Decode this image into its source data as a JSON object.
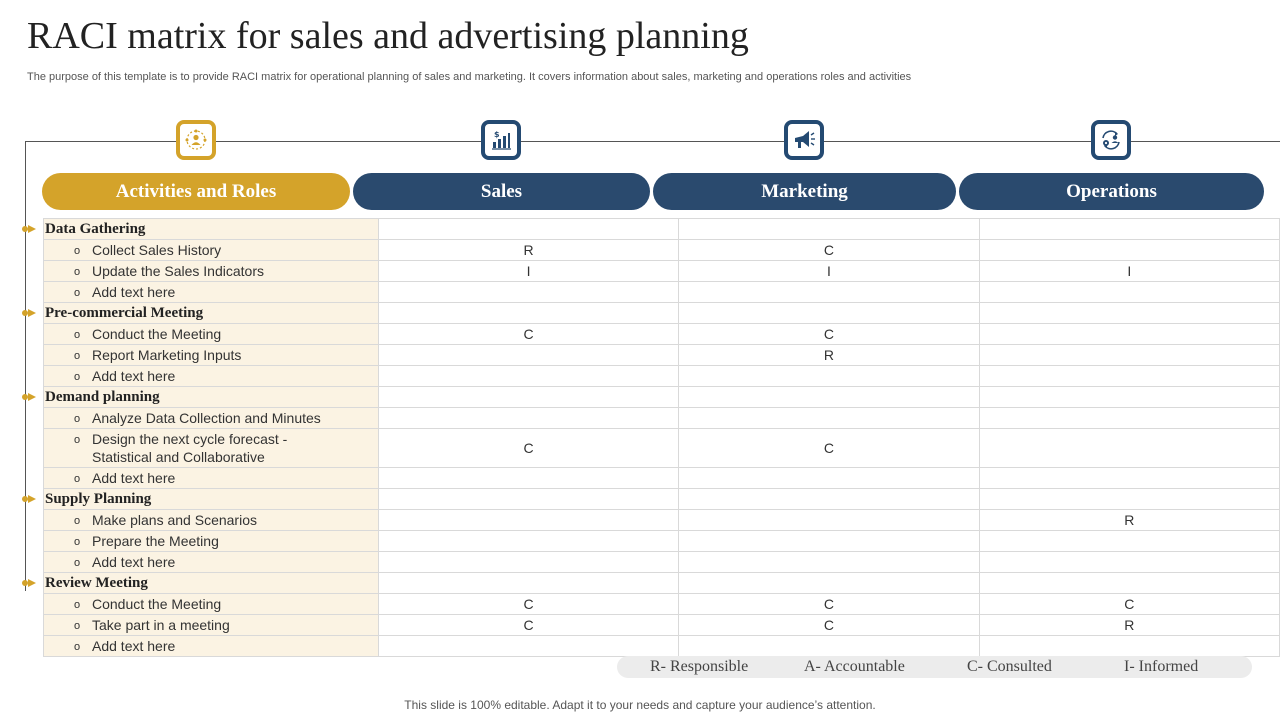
{
  "title": "RACI matrix for sales and advertising planning",
  "subtitle": "The purpose of this template is to provide RACI matrix for operational planning of sales and marketing. It covers information about sales, marketing and operations roles and activities",
  "icons": [
    "people-network-icon",
    "bar-chart-icon",
    "megaphone-icon",
    "cycle-gears-icon"
  ],
  "colors": {
    "gold": "#d4a32a",
    "navy": "#2a4a6e",
    "activity_bg": "#fbf3e3"
  },
  "headers": {
    "activities": "Activities and Roles",
    "sales": "Sales",
    "marketing": "Marketing",
    "operations": "Operations"
  },
  "bullet": "o",
  "sections": [
    {
      "name": "Data Gathering",
      "rows": [
        {
          "activity": "Collect Sales History",
          "sales": "R",
          "marketing": "C",
          "operations": ""
        },
        {
          "activity": "Update the Sales Indicators",
          "sales": "I",
          "marketing": "I",
          "operations": "I"
        },
        {
          "activity": "Add text here",
          "sales": "",
          "marketing": "",
          "operations": ""
        }
      ]
    },
    {
      "name": "Pre-commercial Meeting",
      "rows": [
        {
          "activity": "Conduct the Meeting",
          "sales": "C",
          "marketing": "C",
          "operations": ""
        },
        {
          "activity": " Report Marketing Inputs",
          "sales": "",
          "marketing": "R",
          "operations": ""
        },
        {
          "activity": "Add text here",
          "sales": "",
          "marketing": "",
          "operations": ""
        }
      ]
    },
    {
      "name": "Demand planning",
      "rows": [
        {
          "activity": "Analyze Data Collection and Minutes",
          "sales": "",
          "marketing": "",
          "operations": ""
        },
        {
          "activity": "Design the next cycle forecast - Statistical and Collaborative",
          "sales": "C",
          "marketing": "C",
          "operations": ""
        },
        {
          "activity": "Add text here",
          "sales": "",
          "marketing": "",
          "operations": ""
        }
      ]
    },
    {
      "name": "Supply Planning",
      "rows": [
        {
          "activity": "Make plans and Scenarios",
          "sales": "",
          "marketing": "",
          "operations": "R"
        },
        {
          "activity": "Prepare the Meeting",
          "sales": "",
          "marketing": "",
          "operations": ""
        },
        {
          "activity": "Add text here",
          "sales": "",
          "marketing": "",
          "operations": ""
        }
      ]
    },
    {
      "name": "Review Meeting",
      "rows": [
        {
          "activity": "Conduct the Meeting",
          "sales": "C",
          "marketing": "C",
          "operations": "C"
        },
        {
          "activity": "Take part in a meeting",
          "sales": "C",
          "marketing": "C",
          "operations": "R"
        },
        {
          "activity": "Add text here",
          "sales": "",
          "marketing": "",
          "operations": ""
        }
      ]
    }
  ],
  "legend": [
    "R- Responsible",
    "A- Accountable",
    "C- Consulted",
    "I- Informed"
  ],
  "footer": "This slide is 100% editable. Adapt it to your needs and capture your audience’s attention."
}
